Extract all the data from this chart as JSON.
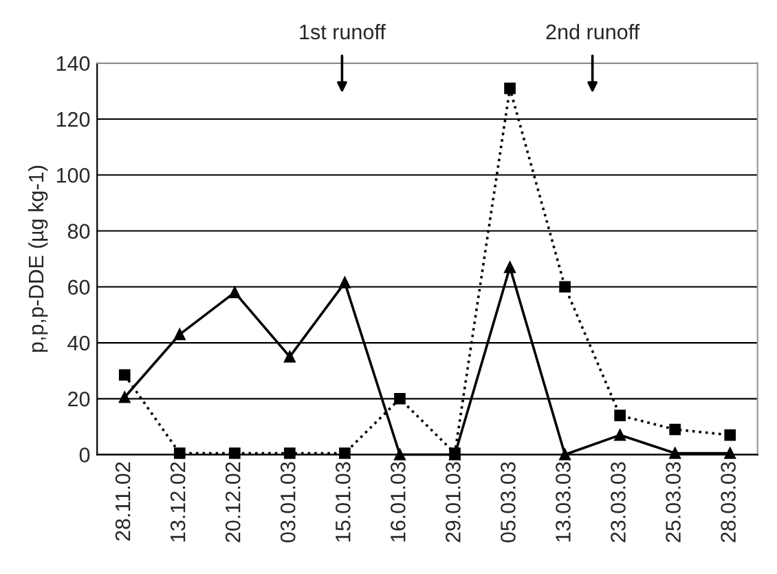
{
  "chart_data": {
    "type": "line",
    "ylabel": "p,p,p-DDE (µg kg-1)",
    "categories": [
      "28.11.02",
      "13.12.02",
      "20.12.02",
      "03.01.03",
      "15.01.03",
      "16.01.03",
      "29.01.03",
      "05.03.03",
      "13.03.03",
      "23.03.03",
      "25.03.03",
      "28.03.03"
    ],
    "series": [
      {
        "color": "#000000",
        "marker": "triangle",
        "line_style": "solid",
        "values": [
          20.5,
          43,
          58,
          35,
          61.5,
          0,
          0,
          67,
          0,
          7,
          0.5,
          0.5
        ]
      },
      {
        "color": "#000000",
        "marker": "square",
        "line_style": "dotted",
        "values": [
          28.5,
          0.5,
          0.5,
          0.5,
          0.5,
          20,
          0.5,
          131,
          60,
          14,
          9,
          7
        ]
      }
    ],
    "ylim": [
      0,
      140
    ],
    "yticks": [
      0,
      20,
      40,
      60,
      80,
      100,
      120,
      140
    ],
    "grid": "y",
    "annotations": [
      "1st runoff",
      "2nd runoff"
    ]
  }
}
